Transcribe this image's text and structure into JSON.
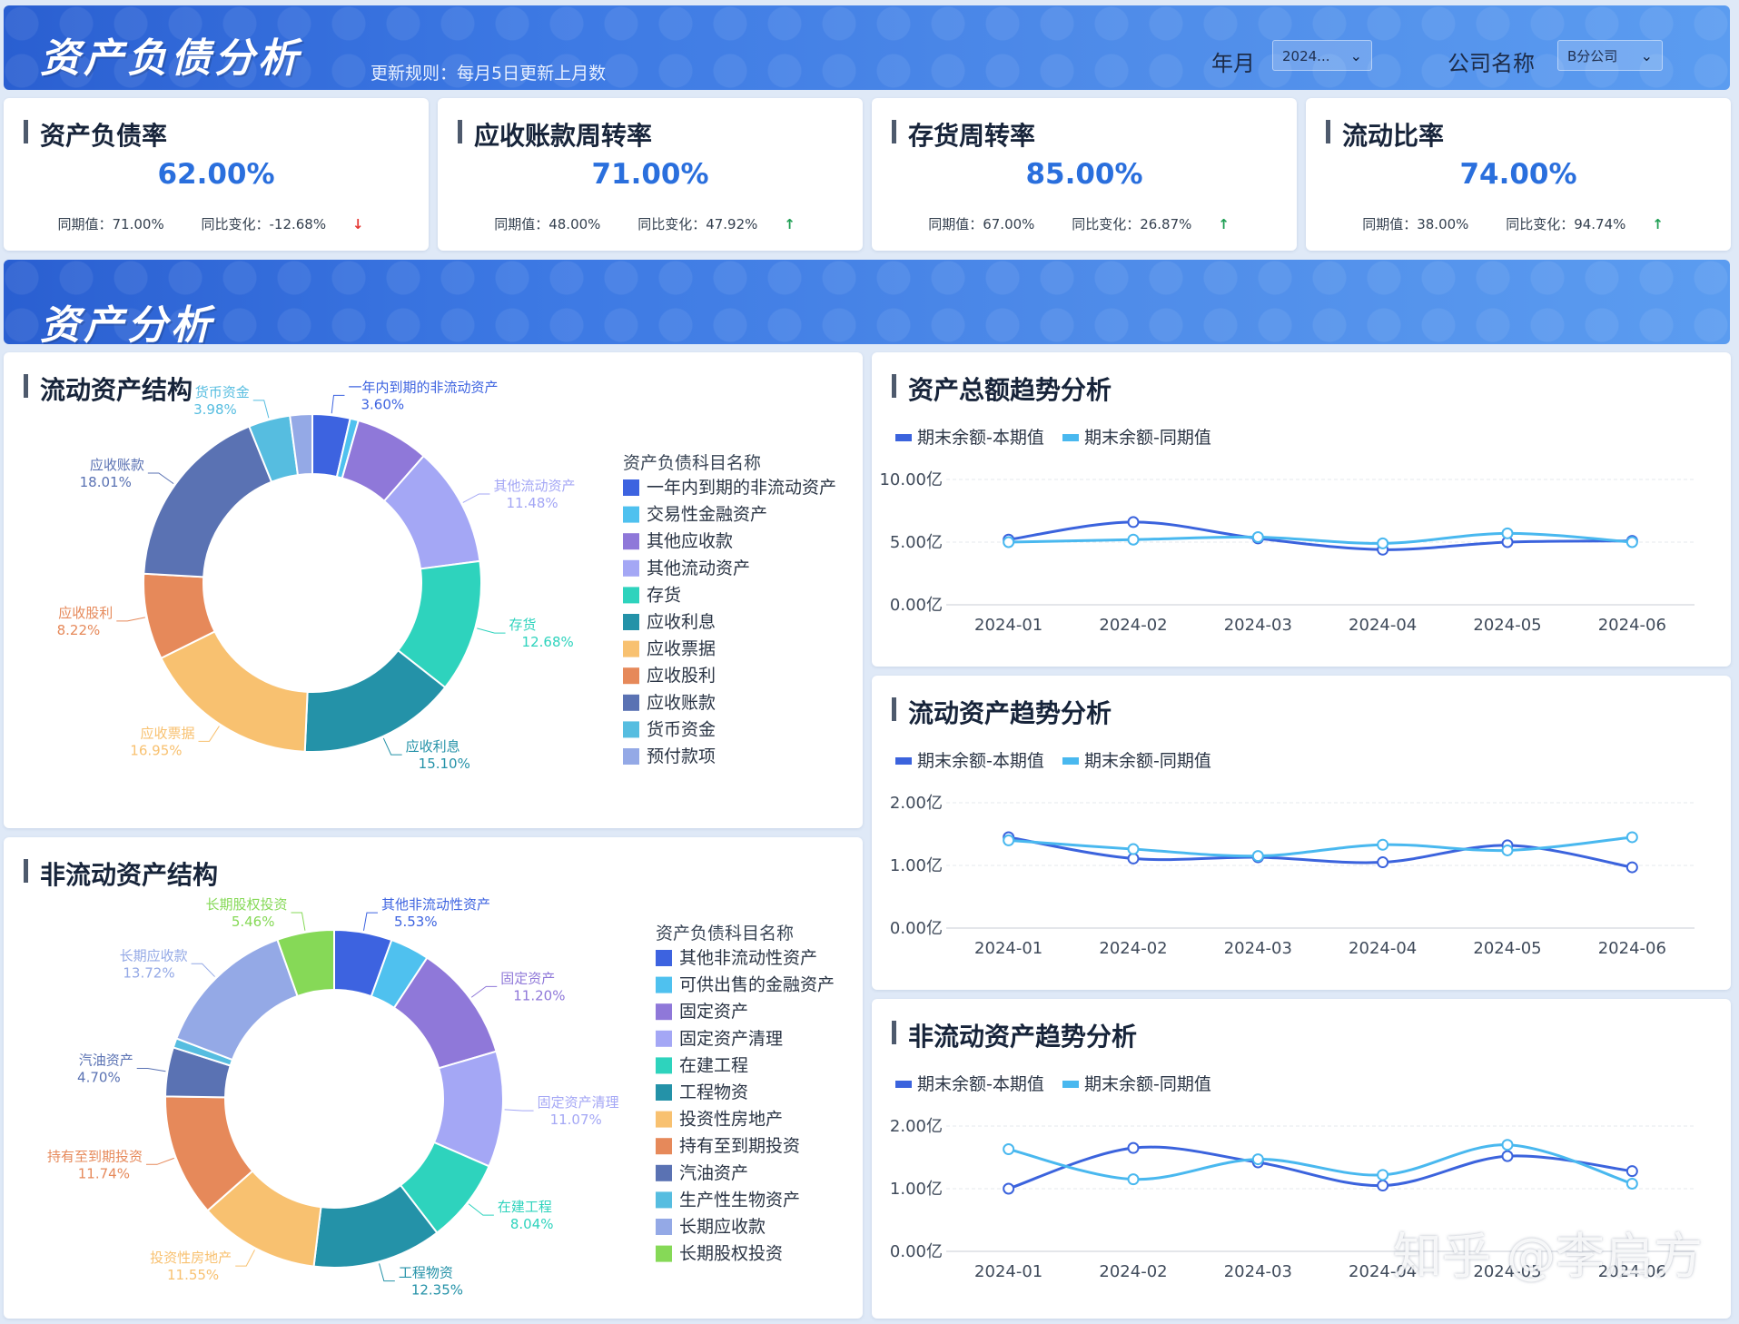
{
  "header": {
    "title": "资产负债分析",
    "rule": "更新规则：每月5日更新上月数",
    "year_month_label": "年月",
    "year_month_value": "2024...",
    "company_label": "公司名称",
    "company_value": "B分公司"
  },
  "kpis": [
    {
      "title": "资产负债率",
      "value": "62.00%",
      "prior_label": "同期值：71.00%",
      "change_label": "同比变化：-12.68%",
      "trend": "down"
    },
    {
      "title": "应收账款周转率",
      "value": "71.00%",
      "prior_label": "同期值：48.00%",
      "change_label": "同比变化：47.92%",
      "trend": "up"
    },
    {
      "title": "存货周转率",
      "value": "85.00%",
      "prior_label": "同期值：67.00%",
      "change_label": "同比变化：26.87%",
      "trend": "up"
    },
    {
      "title": "流动比率",
      "value": "74.00%",
      "prior_label": "同期值：38.00%",
      "change_label": "同比变化：94.74%",
      "trend": "up"
    }
  ],
  "section": {
    "title": "资产分析"
  },
  "colors": {
    "series_current": "#3b63dd",
    "series_prior": "#49b8ef",
    "up": "#1e9e53",
    "down": "#e53935",
    "accent": "#2a6fdd"
  },
  "chart_data": [
    {
      "id": "current-assets",
      "type": "pie",
      "title": "流动资产结构",
      "legend_title": "资产负债科目名称",
      "labels": [
        "一年内到期的非流动资产",
        "交易性金融资产",
        "其他应收款",
        "其他流动资产",
        "存货",
        "应收利息",
        "应收票据",
        "应收股利",
        "应收账款",
        "货币资金",
        "预付款项"
      ],
      "values": [
        3.6,
        0.8,
        7.05,
        11.48,
        12.68,
        15.1,
        16.95,
        8.22,
        18.01,
        3.98,
        2.13
      ],
      "value_labels": [
        "3.60%",
        "",
        "",
        "11.48%",
        "12.68%",
        "15.10%",
        "16.95%",
        "8.22%",
        "18.01%",
        "3.98%",
        ""
      ],
      "colors": [
        "#3d63e0",
        "#4fc1ef",
        "#8f78d9",
        "#a4a7f5",
        "#2ed3bd",
        "#2492a8",
        "#f8c170",
        "#e6895a",
        "#5a72b3",
        "#56bde0",
        "#94a9e6"
      ]
    },
    {
      "id": "non-current-assets",
      "type": "pie",
      "title": "非流动资产结构",
      "legend_title": "资产负债科目名称",
      "labels": [
        "其他非流动性资产",
        "可供出售的金融资产",
        "固定资产",
        "固定资产清理",
        "在建工程",
        "工程物资",
        "投资性房地产",
        "持有至到期投资",
        "汽油资产",
        "生产性生物资产",
        "长期应收款",
        "长期股权投资"
      ],
      "values": [
        5.53,
        3.74,
        11.2,
        11.07,
        8.04,
        12.35,
        11.55,
        11.74,
        4.7,
        0.9,
        13.72,
        5.46
      ],
      "value_labels": [
        "5.53%",
        "",
        "11.20%",
        "11.07%",
        "8.04%",
        "12.35%",
        "11.55%",
        "11.74%",
        "4.70%",
        "",
        "13.72%",
        "5.46%"
      ],
      "colors": [
        "#3d63e0",
        "#4fc1ef",
        "#8f78d9",
        "#a4a7f5",
        "#2ed3bd",
        "#2492a8",
        "#f8c170",
        "#e6895a",
        "#5a72b3",
        "#56bde0",
        "#94a9e6",
        "#86d957"
      ]
    },
    {
      "id": "total-trend",
      "type": "line",
      "title": "资产总额趋势分析",
      "x": [
        "2024-01",
        "2024-02",
        "2024-03",
        "2024-04",
        "2024-05",
        "2024-06"
      ],
      "y_ticks": [
        "0.00亿",
        "5.00亿",
        "10.00亿"
      ],
      "ylim": [
        0,
        10
      ],
      "series": [
        {
          "name": "期末余额-本期值",
          "values": [
            5.2,
            6.6,
            5.3,
            4.4,
            5.0,
            5.1
          ]
        },
        {
          "name": "期末余额-同期值",
          "values": [
            5.0,
            5.2,
            5.4,
            4.9,
            5.7,
            5.0
          ]
        }
      ]
    },
    {
      "id": "current-trend",
      "type": "line",
      "title": "流动资产趋势分析",
      "x": [
        "2024-01",
        "2024-02",
        "2024-03",
        "2024-04",
        "2024-05",
        "2024-06"
      ],
      "y_ticks": [
        "0.00亿",
        "1.00亿",
        "2.00亿"
      ],
      "ylim": [
        0,
        2
      ],
      "series": [
        {
          "name": "期末余额-本期值",
          "values": [
            1.45,
            1.11,
            1.13,
            1.05,
            1.32,
            0.97
          ]
        },
        {
          "name": "期末余额-同期值",
          "values": [
            1.4,
            1.26,
            1.15,
            1.33,
            1.24,
            1.45
          ]
        }
      ]
    },
    {
      "id": "noncurrent-trend",
      "type": "line",
      "title": "非流动资产趋势分析",
      "x": [
        "2024-01",
        "2024-02",
        "2024-03",
        "2024-04",
        "2024-05",
        "2024-06"
      ],
      "y_ticks": [
        "0.00亿",
        "1.00亿",
        "2.00亿"
      ],
      "ylim": [
        0,
        2
      ],
      "series": [
        {
          "name": "期末余额-本期值",
          "values": [
            1.0,
            1.65,
            1.42,
            1.05,
            1.52,
            1.28
          ]
        },
        {
          "name": "期末余额-同期值",
          "values": [
            1.63,
            1.15,
            1.47,
            1.22,
            1.7,
            1.08
          ]
        }
      ]
    }
  ],
  "watermark": "知乎 @李启方"
}
